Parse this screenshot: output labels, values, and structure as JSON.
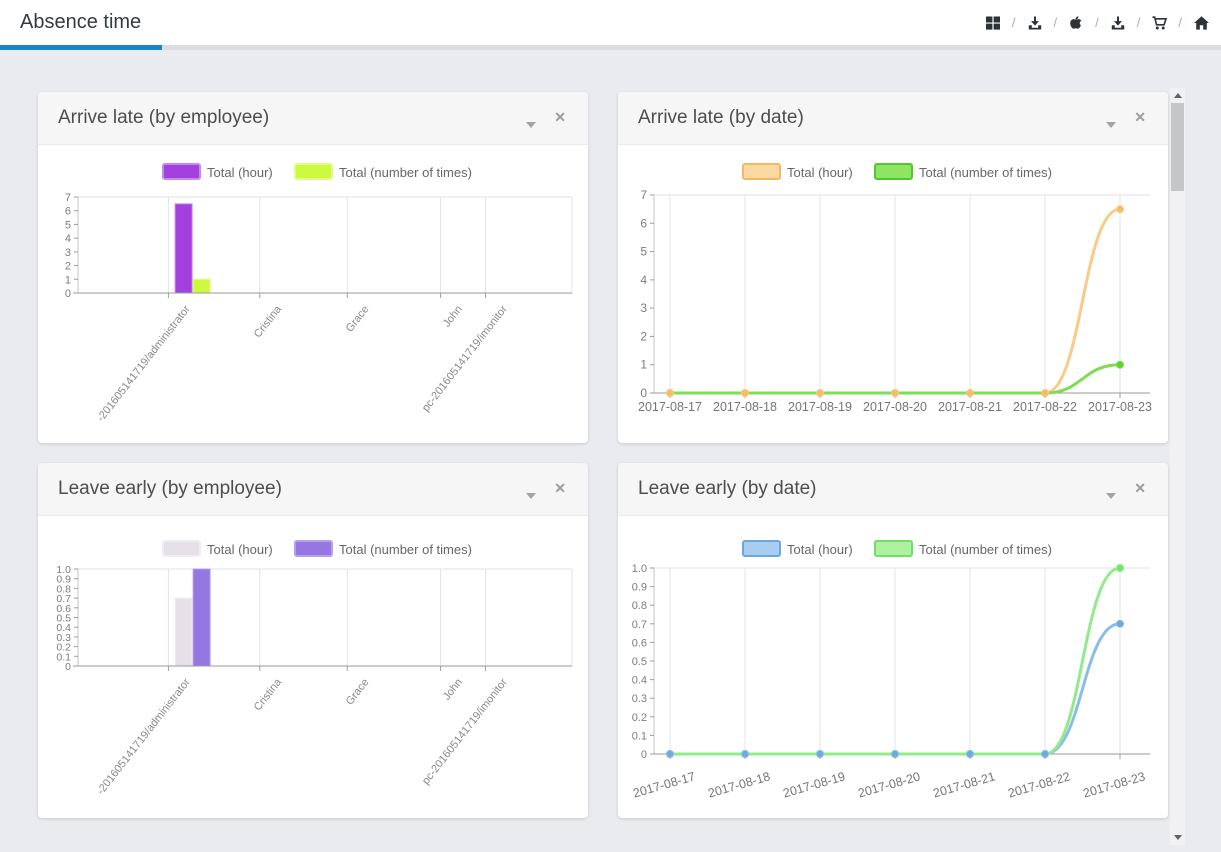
{
  "header": {
    "title": "Absence time",
    "icon_separator": "/",
    "icons": [
      "windows",
      "download",
      "apple",
      "download",
      "cart",
      "home"
    ]
  },
  "panels": [
    {
      "title": "Arrive late (by employee)"
    },
    {
      "title": "Arrive late (by date)"
    },
    {
      "title": "Leave early (by employee)"
    },
    {
      "title": "Leave early (by date)"
    }
  ],
  "panel_controls": {
    "close_glyph": "✕"
  },
  "chart_data": [
    {
      "type": "bar",
      "title": "Arrive late (by employee)",
      "categories": [
        "-201605141719/administrator",
        "Cristina",
        "Grace",
        "John",
        "pc-201605141719/imonitor"
      ],
      "series": [
        {
          "name": "Total (hour)",
          "values": [
            6.5,
            0,
            0,
            0,
            0
          ],
          "color": "#a440dd",
          "border": "#c489ec"
        },
        {
          "name": "Total (number of times)",
          "values": [
            1,
            0,
            0,
            0,
            0
          ],
          "color": "#cdf93e",
          "border": "#e2fb8a"
        }
      ],
      "xlabel": "",
      "ylabel": "",
      "ylim": [
        0,
        7
      ],
      "ystep": 1,
      "ydecimals": 0,
      "legend_position": "top",
      "grid": "vertical"
    },
    {
      "type": "line",
      "title": "Arrive late (by date)",
      "x": [
        "2017-08-17",
        "2017-08-18",
        "2017-08-19",
        "2017-08-20",
        "2017-08-21",
        "2017-08-22",
        "2017-08-23"
      ],
      "series": [
        {
          "name": "Total (hour)",
          "values": [
            0,
            0,
            0,
            0,
            0,
            0,
            6.5
          ],
          "color": "#f9cb87",
          "marker": "#f4bc69",
          "legend_fill": "#fbd9a2",
          "legend_border": "#f3b860"
        },
        {
          "name": "Total (number of times)",
          "values": [
            0,
            0,
            0,
            0,
            0,
            0,
            1
          ],
          "color": "#7edd55",
          "marker": "#5ed133",
          "legend_fill": "#8fe464",
          "legend_border": "#4fc72e"
        }
      ],
      "xlabel": "",
      "ylabel": "",
      "ylim": [
        0,
        7
      ],
      "ystep": 1,
      "ydecimals": 0,
      "legend_position": "top",
      "grid": "vertical"
    },
    {
      "type": "bar",
      "title": "Leave early (by employee)",
      "categories": [
        "-201605141719/administrator",
        "Cristina",
        "Grace",
        "John",
        "pc-201605141719/imonitor"
      ],
      "series": [
        {
          "name": "Total (hour)",
          "values": [
            0.7,
            0,
            0,
            0,
            0
          ],
          "color": "#e6e1e8",
          "border": "#f0ecf3"
        },
        {
          "name": "Total (number of times)",
          "values": [
            1,
            0,
            0,
            0,
            0
          ],
          "color": "#9577e1",
          "border": "#b5a0ef"
        }
      ],
      "xlabel": "",
      "ylabel": "",
      "ylim": [
        0,
        1
      ],
      "ystep": 0.1,
      "ydecimals": 1,
      "legend_position": "top",
      "grid": "vertical"
    },
    {
      "type": "line",
      "title": "Leave early (by date)",
      "x": [
        "2017-08-17",
        "2017-08-18",
        "2017-08-19",
        "2017-08-20",
        "2017-08-21",
        "2017-08-22",
        "2017-08-23"
      ],
      "series": [
        {
          "name": "Total (hour)",
          "values": [
            0,
            0,
            0,
            0,
            0,
            0,
            0.7
          ],
          "color": "#8abdea",
          "marker": "#6fa9dd",
          "legend_fill": "#a8cdf0",
          "legend_border": "#69a8dd"
        },
        {
          "name": "Total (number of times)",
          "values": [
            0,
            0,
            0,
            0,
            0,
            0,
            1
          ],
          "color": "#90ec8b",
          "marker": "#74e56c",
          "legend_fill": "#aef2a0",
          "legend_border": "#6fdd66"
        }
      ],
      "xlabel": "",
      "ylabel": "",
      "ylim": [
        0,
        1
      ],
      "ystep": 0.1,
      "ydecimals": 1,
      "legend_position": "top",
      "grid": "vertical"
    }
  ]
}
